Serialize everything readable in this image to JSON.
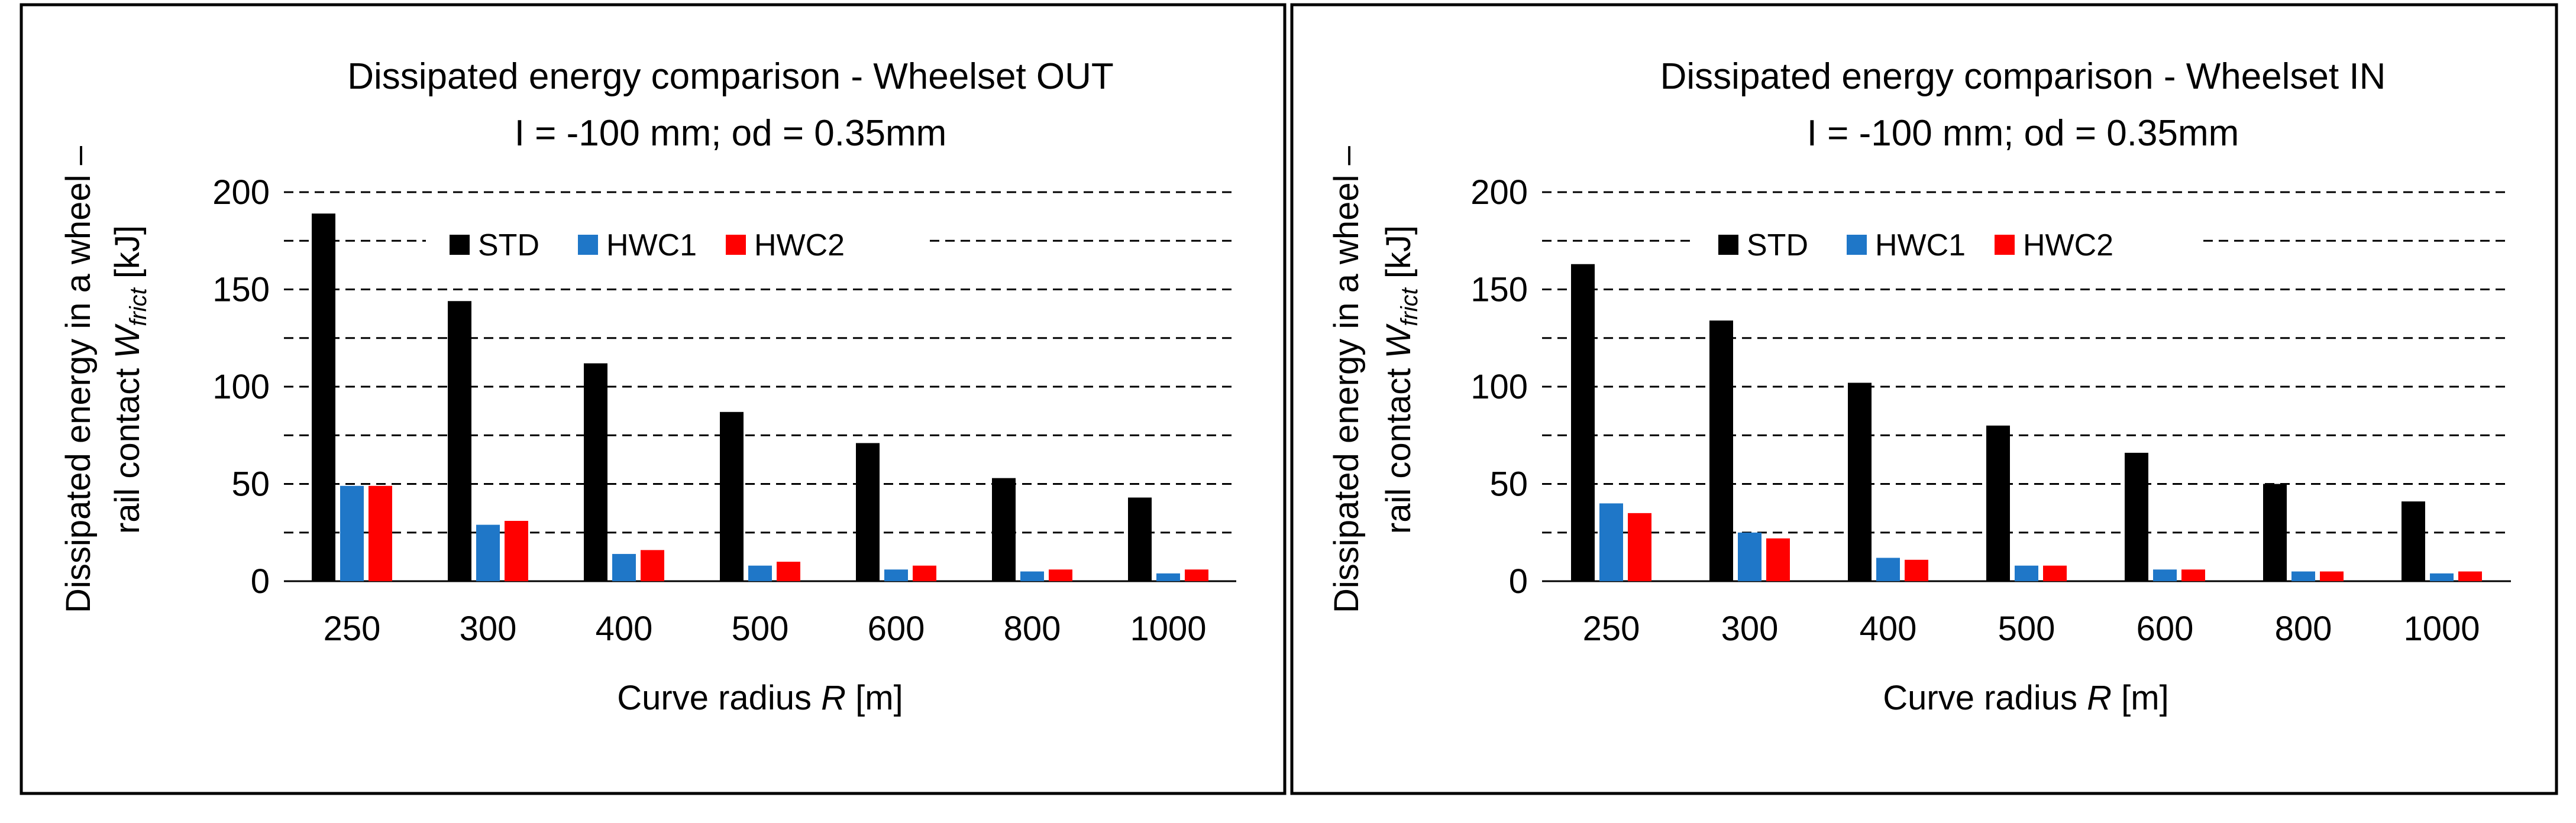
{
  "chart_data": [
    {
      "type": "bar",
      "title": "Dissipated energy comparison - Wheelset OUT",
      "subtitle": "I = -100 mm; od = 0.35mm",
      "xlabel": {
        "prefix": "Curve radius ",
        "symbol": "R",
        "suffix": " [m]"
      },
      "ylabel": {
        "line1": "Dissipated energy in a wheel –",
        "line2_prefix": "rail contact ",
        "symbol": "W",
        "subscript": "frict",
        "line2_suffix": " [kJ]"
      },
      "ylim": [
        0,
        200
      ],
      "yticks": [
        0,
        50,
        100,
        150,
        200
      ],
      "grid": "dashed, every 25",
      "legend": "top",
      "categories": [
        "250",
        "300",
        "400",
        "500",
        "600",
        "800",
        "1000"
      ],
      "series": [
        {
          "name": "STD",
          "color": "#000000",
          "values": [
            189,
            144,
            112,
            87,
            71,
            53,
            43
          ]
        },
        {
          "name": "HWC1",
          "color": "#1f77c8",
          "values": [
            49,
            29,
            14,
            8,
            6,
            5,
            4
          ]
        },
        {
          "name": "HWC2",
          "color": "#ff0000",
          "values": [
            49,
            31,
            16,
            10,
            8,
            6,
            6
          ]
        }
      ]
    },
    {
      "type": "bar",
      "title": "Dissipated energy comparison - Wheelset IN",
      "subtitle": "I = -100 mm; od = 0.35mm",
      "xlabel": {
        "prefix": "Curve radius ",
        "symbol": "R",
        "suffix": " [m]"
      },
      "ylabel": {
        "line1": "Dissipated energy in a wheel –",
        "line2_prefix": "rail contact ",
        "symbol": "W",
        "subscript": "frict",
        "line2_suffix": " [kJ]"
      },
      "ylim": [
        0,
        200
      ],
      "yticks": [
        0,
        50,
        100,
        150,
        200
      ],
      "grid": "dashed, every 25",
      "legend": "top",
      "categories": [
        "250",
        "300",
        "400",
        "500",
        "600",
        "800",
        "1000"
      ],
      "series": [
        {
          "name": "STD",
          "color": "#000000",
          "values": [
            163,
            134,
            102,
            80,
            66,
            50,
            41
          ]
        },
        {
          "name": "HWC1",
          "color": "#1f77c8",
          "values": [
            40,
            25,
            12,
            8,
            6,
            5,
            4
          ]
        },
        {
          "name": "HWC2",
          "color": "#ff0000",
          "values": [
            35,
            22,
            11,
            8,
            6,
            5,
            5
          ]
        }
      ]
    }
  ]
}
